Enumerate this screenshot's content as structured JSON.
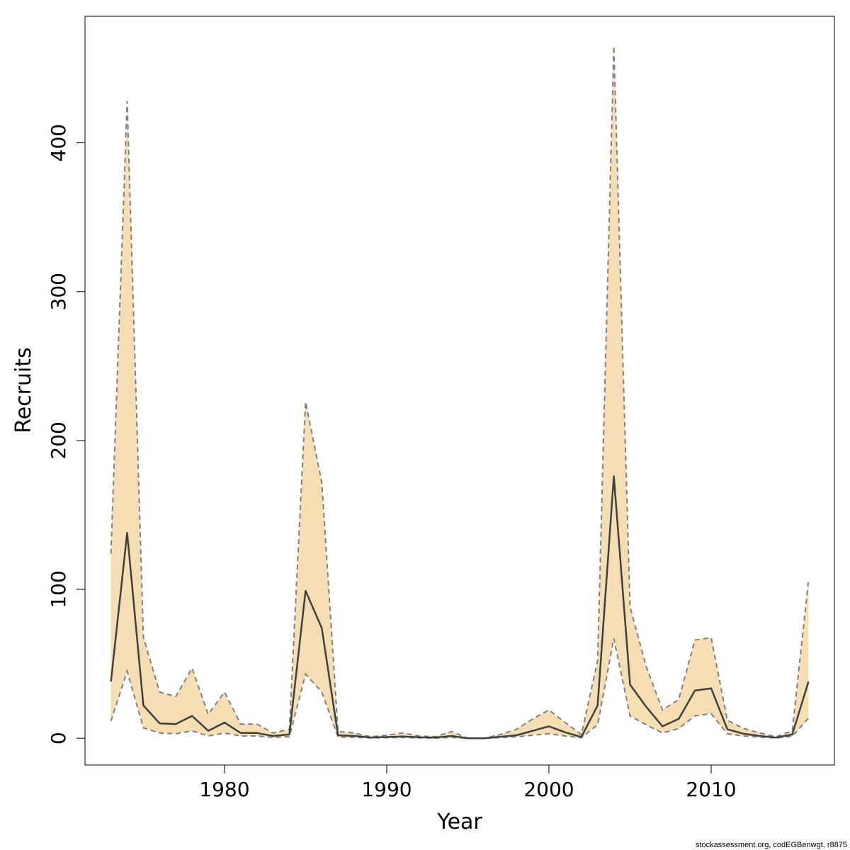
{
  "chart_data": {
    "type": "area",
    "xlabel": "Year",
    "ylabel": "Recruits",
    "xlim": [
      1971.4,
      2017.6
    ],
    "ylim": [
      -18,
      485
    ],
    "x_ticks": [
      1980,
      1990,
      2000,
      2010
    ],
    "y_ticks": [
      0,
      100,
      200,
      300,
      400
    ],
    "grid": false,
    "footnote": "stockassessment.org, codEGBenwgt, r8875",
    "colors": {
      "band": "#f5deb3",
      "line": "#404040",
      "bounds": "#808080"
    },
    "x": [
      1973,
      1974,
      1975,
      1976,
      1977,
      1978,
      1979,
      1980,
      1981,
      1982,
      1983,
      1984,
      1985,
      1986,
      1987,
      1988,
      1989,
      1990,
      1991,
      1992,
      1993,
      1994,
      1995,
      1996,
      1997,
      1998,
      1999,
      2000,
      2001,
      2002,
      2003,
      2004,
      2005,
      2006,
      2007,
      2008,
      2009,
      2010,
      2011,
      2012,
      2013,
      2014,
      2015,
      2016
    ],
    "series": [
      {
        "role": "estimate",
        "values": [
          38,
          138,
          22,
          10,
          9.5,
          15,
          5,
          10.5,
          3.5,
          3.5,
          1.5,
          2.5,
          99,
          74,
          2,
          1.5,
          0.5,
          0.8,
          1.2,
          0.6,
          0.4,
          1.5,
          0,
          0,
          1,
          2,
          5,
          8,
          4,
          0.8,
          22,
          176,
          36,
          21,
          8,
          13,
          32,
          33.5,
          6,
          3,
          1.5,
          0.4,
          2.5,
          38
        ]
      },
      {
        "role": "upper",
        "values": [
          124,
          428,
          68,
          31,
          28,
          47,
          16,
          31,
          9.5,
          9.5,
          3.5,
          6,
          226,
          172,
          4.5,
          3.5,
          1,
          2,
          3.5,
          1.5,
          1,
          4.5,
          0,
          0,
          2.5,
          6,
          13,
          19,
          10.5,
          2.5,
          52,
          465,
          88,
          48,
          19,
          26,
          66,
          67.5,
          12,
          6.5,
          3.5,
          1,
          5,
          106
        ]
      },
      {
        "role": "lower",
        "values": [
          11.5,
          45,
          7,
          3.5,
          3,
          5,
          1.5,
          3.5,
          1.5,
          1.5,
          0.5,
          1,
          43,
          31,
          0.8,
          0.6,
          0.2,
          0.3,
          0.5,
          0.2,
          0.1,
          0.5,
          0,
          0,
          0.4,
          1,
          2,
          3,
          1.5,
          0.3,
          9,
          67,
          15,
          9,
          3.5,
          6.5,
          15,
          16.5,
          3,
          1.5,
          0.7,
          0.2,
          1.2,
          13.5
        ]
      }
    ]
  }
}
